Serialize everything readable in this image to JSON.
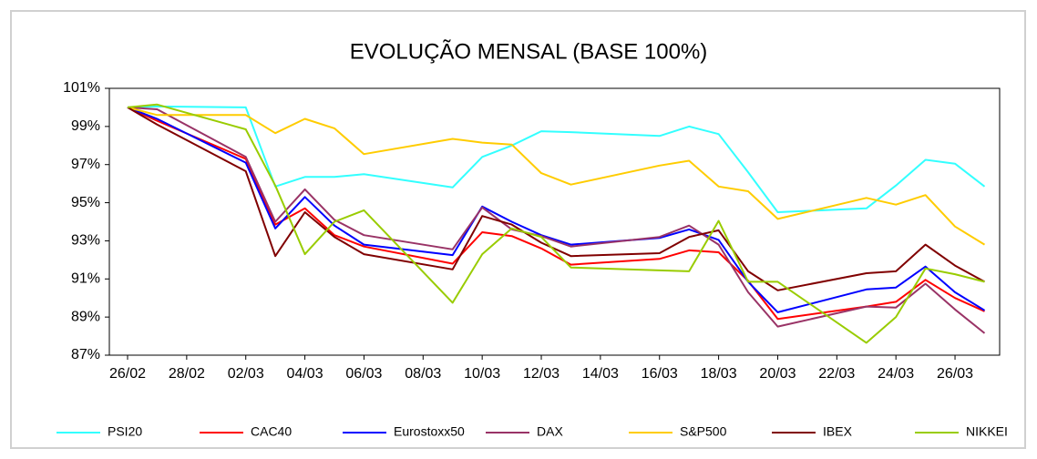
{
  "chart_data": {
    "type": "line",
    "title": "EVOLUÇÃO MENSAL (BASE 100%)",
    "x": [
      "26/02",
      "27/02",
      "02/03",
      "03/03",
      "04/03",
      "05/03",
      "06/03",
      "09/03",
      "10/03",
      "11/03",
      "12/03",
      "13/03",
      "16/03",
      "17/03",
      "18/03",
      "19/03",
      "20/03",
      "23/03",
      "24/03",
      "25/03",
      "26/03",
      "27/03"
    ],
    "xticks": [
      "26/02",
      "28/02",
      "02/03",
      "04/03",
      "06/03",
      "08/03",
      "10/03",
      "12/03",
      "14/03",
      "16/03",
      "18/03",
      "20/03",
      "22/03",
      "24/03",
      "26/03"
    ],
    "ylim": [
      87,
      101
    ],
    "yticks": [
      {
        "value": 87,
        "label": "87%"
      },
      {
        "value": 89,
        "label": "89%"
      },
      {
        "value": 91,
        "label": "91%"
      },
      {
        "value": 93,
        "label": "93%"
      },
      {
        "value": 95,
        "label": "95%"
      },
      {
        "value": 97,
        "label": "97%"
      },
      {
        "value": 99,
        "label": "99%"
      },
      {
        "value": 101,
        "label": "101%"
      }
    ],
    "grid": false,
    "legend": "bottom",
    "series": [
      {
        "name": "PSI20",
        "color": "#33ffff",
        "values": [
          100,
          100.05,
          100.0,
          95.85,
          96.35,
          96.35,
          96.5,
          95.8,
          97.4,
          98.0,
          98.75,
          98.7,
          98.5,
          99.0,
          98.6,
          96.6,
          94.5,
          94.7,
          95.9,
          97.25,
          97.05,
          95.85
        ]
      },
      {
        "name": "CAC40",
        "color": "#ff0000",
        "values": [
          100,
          99.3,
          97.3,
          93.85,
          94.7,
          93.3,
          92.7,
          91.8,
          93.45,
          93.25,
          92.6,
          91.75,
          92.05,
          92.5,
          92.4,
          90.9,
          88.9,
          89.55,
          89.8,
          90.95,
          90.0,
          89.3
        ]
      },
      {
        "name": "Eurostoxx50",
        "color": "#0000ff",
        "values": [
          100,
          99.4,
          97.1,
          93.65,
          95.3,
          93.8,
          92.8,
          92.25,
          94.8,
          94.0,
          93.3,
          92.8,
          93.15,
          93.6,
          93.05,
          90.85,
          89.25,
          90.45,
          90.55,
          91.65,
          90.3,
          89.35
        ]
      },
      {
        "name": "DAX",
        "color": "#993366",
        "values": [
          100,
          99.9,
          97.4,
          94.0,
          95.7,
          94.1,
          93.3,
          92.55,
          94.75,
          93.6,
          93.25,
          92.7,
          93.2,
          93.8,
          92.8,
          90.3,
          88.5,
          89.55,
          89.5,
          90.75,
          89.4,
          88.15
        ]
      },
      {
        "name": "S&P500",
        "color": "#ffcc00",
        "values": [
          100,
          99.6,
          99.6,
          98.65,
          99.4,
          98.9,
          97.55,
          98.35,
          98.15,
          98.05,
          96.55,
          95.95,
          96.95,
          97.2,
          95.85,
          95.6,
          94.15,
          95.25,
          94.9,
          95.4,
          93.75,
          92.8
        ]
      },
      {
        "name": "IBEX",
        "color": "#800000",
        "values": [
          100,
          99.1,
          96.65,
          92.2,
          94.5,
          93.2,
          92.3,
          91.5,
          94.3,
          93.85,
          92.9,
          92.2,
          92.35,
          93.2,
          93.55,
          91.4,
          90.4,
          91.3,
          91.4,
          92.8,
          91.7,
          90.85
        ]
      },
      {
        "name": "NIKKEI",
        "color": "#99cc00",
        "values": [
          100,
          100.15,
          98.85,
          95.9,
          92.3,
          94.0,
          94.6,
          89.75,
          92.3,
          93.65,
          93.2,
          91.6,
          91.45,
          91.4,
          94.05,
          90.85,
          90.85,
          87.65,
          89.0,
          91.55,
          91.25,
          90.85
        ]
      }
    ]
  }
}
